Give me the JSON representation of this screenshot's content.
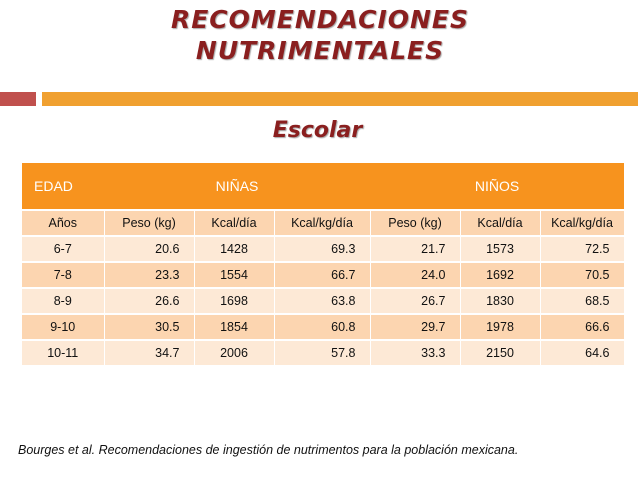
{
  "title": {
    "line1": "RECOMENDACIONES",
    "line2": "NUTRIMENTALES"
  },
  "subtitle": "Escolar",
  "colors": {
    "title": "#8a1f1f",
    "header": "#f7931e",
    "row_dark": "#fcd5b0",
    "row_light": "#fde9d6",
    "bar_red": "#c0504d",
    "bar_orange": "#f0a030"
  },
  "table": {
    "group_headers": {
      "edad": "EDAD",
      "ninas": "NIÑAS",
      "ninos": "NIÑOS"
    },
    "columns": [
      "Años",
      "Peso (kg)",
      "Kcal/día",
      "Kcal/kg/día",
      "Peso (kg)",
      "Kcal/día",
      "Kcal/kg/día"
    ],
    "rows": [
      [
        "6-7",
        "20.6",
        "1428",
        "69.3",
        "21.7",
        "1573",
        "72.5"
      ],
      [
        "7-8",
        "23.3",
        "1554",
        "66.7",
        "24.0",
        "1692",
        "70.5"
      ],
      [
        "8-9",
        "26.6",
        "1698",
        "63.8",
        "26.7",
        "1830",
        "68.5"
      ],
      [
        "9-10",
        "30.5",
        "1854",
        "60.8",
        "29.7",
        "1978",
        "66.6"
      ],
      [
        "10-11",
        "34.7",
        "2006",
        "57.8",
        "33.3",
        "2150",
        "64.6"
      ]
    ]
  },
  "source": "Bourges et al. Recomendaciones de ingestión de nutrimentos para la población mexicana."
}
